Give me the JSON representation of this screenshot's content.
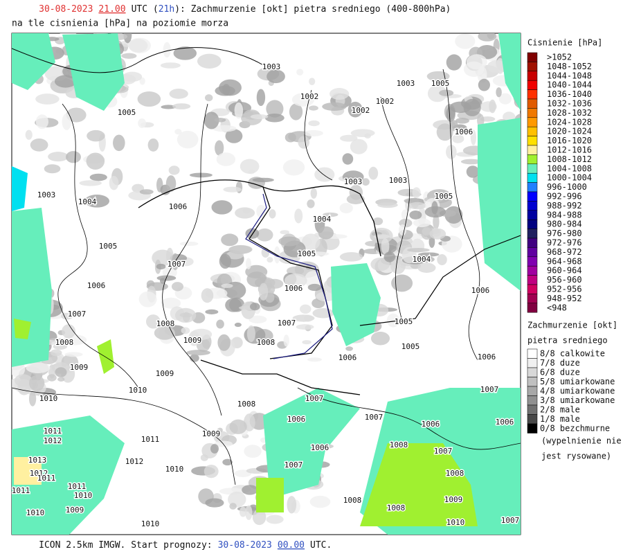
{
  "header": {
    "title_parts": [
      "30-08-2023",
      "21.00",
      "UTC (",
      "21h",
      "): Zachmurzenie [okt] pietra sredniego (400-800hPa)"
    ],
    "subtitle": "na tle cisnienia [hPa] na poziomie morza"
  },
  "footer": {
    "parts": [
      "ICON 2.5km IMGW. Start prognozy:",
      "30-08-2023",
      "00.00",
      "UTC."
    ]
  },
  "pressure_legend": {
    "title": "Cisnienie [hPa]",
    "items": [
      {
        "label": ">1052",
        "color": "#800000"
      },
      {
        "label": "1048-1052",
        "color": "#a01000"
      },
      {
        "label": "1044-1048",
        "color": "#c80000"
      },
      {
        "label": "1040-1044",
        "color": "#f00000"
      },
      {
        "label": "1036-1040",
        "color": "#ff3000"
      },
      {
        "label": "1032-1036",
        "color": "#e05a00"
      },
      {
        "label": "1028-1032",
        "color": "#f07800"
      },
      {
        "label": "1024-1028",
        "color": "#ff9900"
      },
      {
        "label": "1020-1024",
        "color": "#ffc000"
      },
      {
        "label": "1016-1020",
        "color": "#ffe000"
      },
      {
        "label": "1012-1016",
        "color": "#fff0a0"
      },
      {
        "label": "1008-1012",
        "color": "#a0f030"
      },
      {
        "label": "1004-1008",
        "color": "#66eebb"
      },
      {
        "label": "1000-1004",
        "color": "#00e0f0"
      },
      {
        "label": "996-1000",
        "color": "#2080ff"
      },
      {
        "label": "992-996",
        "color": "#0000ff"
      },
      {
        "label": "988-992",
        "color": "#0000d0"
      },
      {
        "label": "984-988",
        "color": "#0000a0"
      },
      {
        "label": "980-984",
        "color": "#000080"
      },
      {
        "label": "976-980",
        "color": "#202060"
      },
      {
        "label": "972-976",
        "color": "#400080"
      },
      {
        "label": "968-972",
        "color": "#6000a0"
      },
      {
        "label": "964-968",
        "color": "#8000b0"
      },
      {
        "label": "960-964",
        "color": "#a000a0"
      },
      {
        "label": "956-960",
        "color": "#c00080"
      },
      {
        "label": "952-956",
        "color": "#d00060"
      },
      {
        "label": "948-952",
        "color": "#a00050"
      },
      {
        "label": "<948",
        "color": "#800040"
      }
    ]
  },
  "cloud_legend": {
    "title": [
      "Zachmurzenie [okt]",
      "pietra sredniego"
    ],
    "items": [
      {
        "label": "8/8 calkowite",
        "color": "#ffffff"
      },
      {
        "label": "7/8 duze",
        "color": "#f0f0f0"
      },
      {
        "label": "6/8 duze",
        "color": "#d8d8d8"
      },
      {
        "label": "5/8 umiarkowane",
        "color": "#c0c0c0"
      },
      {
        "label": "4/8 umiarkowane",
        "color": "#a8a8a8"
      },
      {
        "label": "3/8 umiarkowane",
        "color": "#909090"
      },
      {
        "label": "2/8 male",
        "color": "#707070"
      },
      {
        "label": "1/8 male",
        "color": "#484848"
      },
      {
        "label": "0/8 bezchmurne",
        "color": "#000000"
      }
    ],
    "note": [
      "(wypelnienie nie",
      "jest rysowane)"
    ]
  },
  "map": {
    "isobar_labels": [
      1003,
      1002,
      1003,
      1005,
      1002,
      1002,
      1005,
      1006,
      1003,
      1004,
      1003,
      1003,
      1006,
      1005,
      1004,
      1005,
      1005,
      1004,
      1007,
      1006,
      1006,
      1006,
      1007,
      1007,
      1005,
      1008,
      1008,
      1009,
      1008,
      1005,
      1006,
      1006,
      1009,
      1009,
      1010,
      1007,
      1010,
      1007,
      1008,
      1007,
      1006,
      1006,
      1006,
      1011,
      1009,
      1012,
      1011,
      1008,
      1006,
      1007,
      1013,
      1012,
      1007,
      1010,
      1012,
      1008,
      1011,
      1011,
      1011,
      1010,
      1009,
      1008,
      1009,
      1008,
      1010,
      1010,
      1010,
      1007
    ]
  }
}
